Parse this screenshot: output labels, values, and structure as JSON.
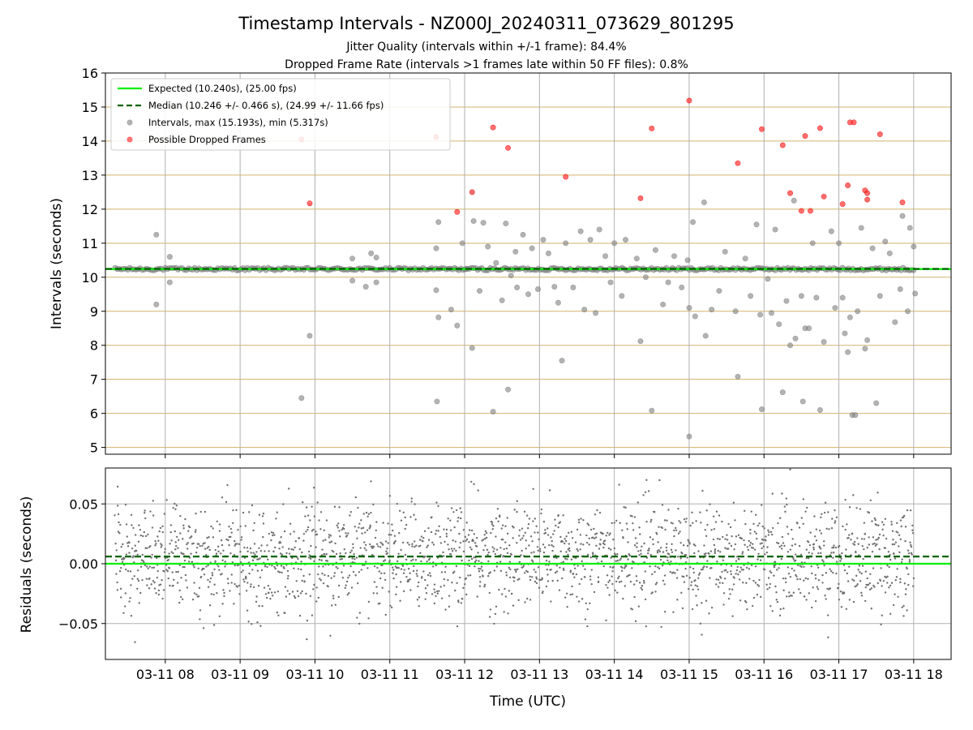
{
  "chart_data": {
    "type": "scatter",
    "title": "Timestamp Intervals - NZ000J_20240311_073629_801295",
    "subtitle_lines": [
      "Jitter Quality (intervals within +/-1 frame): 84.4%",
      "Dropped Frame Rate (intervals >1 frames late within 50 FF files): 0.8%"
    ],
    "xlabel": "Time (UTC)",
    "x_ticks": [
      "03-11 08",
      "03-11 09",
      "03-11 10",
      "03-11 11",
      "03-11 12",
      "03-11 13",
      "03-11 14",
      "03-11 15",
      "03-11 16",
      "03-11 17",
      "03-11 18"
    ],
    "x_range_hours": [
      7.2,
      18.5
    ],
    "panels": {
      "intervals": {
        "ylabel": "Intervals (seconds)",
        "ylim": [
          4.8,
          16
        ],
        "yticks": [
          5,
          6,
          7,
          8,
          9,
          10,
          11,
          12,
          13,
          14,
          15,
          16
        ],
        "horizontal_gridlines": true,
        "horizontal_gridline_color": "#d2b36b",
        "vertical_gridlines": true,
        "expected_value": 10.24,
        "median_value": 10.246,
        "legend": {
          "placement": "top-left",
          "entries": [
            {
              "label": "Expected (10.240s), (25.00 fps)",
              "style": "solid-line",
              "color": "#00ee00"
            },
            {
              "label": "Median (10.246 +/- 0.466 s), (24.99 +/- 11.66 fps)",
              "style": "dashed-line",
              "color": "#006400"
            },
            {
              "label": "Intervals, max (15.193s), min (5.317s)",
              "style": "marker",
              "color": "#808080"
            },
            {
              "label": "Possible Dropped Frames",
              "style": "marker",
              "color": "#ff2020"
            }
          ]
        },
        "outlier_intervals": [
          [
            7.88,
            11.25
          ],
          [
            7.88,
            9.2
          ],
          [
            8.06,
            10.6
          ],
          [
            8.06,
            9.85
          ],
          [
            9.82,
            6.45
          ],
          [
            9.93,
            8.28
          ],
          [
            10.5,
            10.55
          ],
          [
            10.5,
            9.9
          ],
          [
            10.75,
            10.7
          ],
          [
            10.82,
            10.58
          ],
          [
            10.82,
            9.85
          ],
          [
            10.68,
            9.72
          ],
          [
            11.65,
            11.62
          ],
          [
            11.62,
            10.85
          ],
          [
            11.62,
            9.62
          ],
          [
            11.65,
            8.82
          ],
          [
            11.63,
            6.35
          ],
          [
            11.82,
            9.05
          ],
          [
            11.9,
            8.58
          ],
          [
            11.97,
            11.0
          ],
          [
            12.02,
            10.25
          ],
          [
            12.1,
            7.92
          ],
          [
            12.12,
            11.65
          ],
          [
            12.2,
            9.6
          ],
          [
            12.25,
            11.6
          ],
          [
            12.31,
            10.9
          ],
          [
            12.38,
            6.05
          ],
          [
            12.42,
            10.42
          ],
          [
            12.5,
            9.32
          ],
          [
            12.55,
            11.58
          ],
          [
            12.58,
            6.7
          ],
          [
            12.62,
            10.05
          ],
          [
            12.68,
            10.75
          ],
          [
            12.7,
            9.7
          ],
          [
            12.78,
            11.25
          ],
          [
            12.85,
            9.5
          ],
          [
            12.9,
            10.85
          ],
          [
            12.98,
            9.65
          ],
          [
            13.05,
            11.1
          ],
          [
            13.12,
            10.7
          ],
          [
            13.2,
            9.72
          ],
          [
            13.25,
            9.25
          ],
          [
            13.3,
            7.55
          ],
          [
            13.35,
            11.0
          ],
          [
            13.45,
            9.7
          ],
          [
            13.55,
            11.35
          ],
          [
            13.6,
            9.05
          ],
          [
            13.68,
            11.1
          ],
          [
            13.75,
            8.95
          ],
          [
            13.8,
            11.4
          ],
          [
            13.88,
            10.62
          ],
          [
            13.95,
            9.85
          ],
          [
            14.0,
            11.0
          ],
          [
            14.1,
            9.45
          ],
          [
            14.15,
            11.1
          ],
          [
            14.3,
            10.55
          ],
          [
            14.35,
            8.12
          ],
          [
            14.42,
            10.0
          ],
          [
            14.5,
            6.08
          ],
          [
            14.55,
            10.8
          ],
          [
            14.65,
            9.2
          ],
          [
            14.72,
            9.85
          ],
          [
            14.8,
            10.62
          ],
          [
            14.9,
            9.7
          ],
          [
            14.98,
            10.5
          ],
          [
            15.0,
            9.1
          ],
          [
            15.0,
            5.32
          ],
          [
            15.05,
            11.62
          ],
          [
            15.08,
            8.85
          ],
          [
            15.2,
            12.2
          ],
          [
            15.22,
            8.28
          ],
          [
            15.3,
            9.05
          ],
          [
            15.4,
            9.6
          ],
          [
            15.48,
            10.75
          ],
          [
            15.62,
            9.0
          ],
          [
            15.65,
            7.08
          ],
          [
            15.75,
            10.55
          ],
          [
            15.82,
            9.45
          ],
          [
            15.9,
            11.55
          ],
          [
            15.95,
            8.9
          ],
          [
            15.97,
            6.12
          ],
          [
            16.05,
            9.95
          ],
          [
            16.1,
            8.95
          ],
          [
            16.15,
            11.4
          ],
          [
            16.2,
            8.62
          ],
          [
            16.25,
            6.62
          ],
          [
            16.3,
            9.3
          ],
          [
            16.35,
            8.0
          ],
          [
            16.4,
            12.25
          ],
          [
            16.42,
            8.2
          ],
          [
            16.5,
            9.45
          ],
          [
            16.52,
            6.35
          ],
          [
            16.55,
            8.5
          ],
          [
            16.6,
            8.5
          ],
          [
            16.65,
            11.0
          ],
          [
            16.7,
            9.4
          ],
          [
            16.75,
            6.1
          ],
          [
            16.8,
            8.1
          ],
          [
            16.9,
            11.35
          ],
          [
            16.95,
            9.1
          ],
          [
            17.0,
            11.0
          ],
          [
            17.05,
            9.4
          ],
          [
            17.08,
            8.35
          ],
          [
            17.12,
            7.8
          ],
          [
            17.15,
            8.82
          ],
          [
            17.18,
            5.95
          ],
          [
            17.22,
            5.95
          ],
          [
            17.25,
            9.0
          ],
          [
            17.3,
            11.45
          ],
          [
            17.35,
            7.9
          ],
          [
            17.38,
            8.15
          ],
          [
            17.45,
            10.85
          ],
          [
            17.5,
            6.3
          ],
          [
            17.55,
            9.45
          ],
          [
            17.62,
            11.05
          ],
          [
            17.68,
            10.7
          ],
          [
            17.75,
            8.68
          ],
          [
            17.82,
            9.65
          ],
          [
            17.85,
            11.8
          ],
          [
            17.92,
            9.0
          ],
          [
            17.95,
            11.45
          ],
          [
            18.0,
            10.9
          ],
          [
            18.02,
            9.52
          ]
        ],
        "dropped_frames": [
          [
            9.82,
            14.05
          ],
          [
            9.93,
            12.17
          ],
          [
            11.62,
            14.12
          ],
          [
            11.9,
            11.92
          ],
          [
            12.1,
            12.5
          ],
          [
            12.38,
            14.4
          ],
          [
            12.58,
            13.8
          ],
          [
            13.35,
            12.95
          ],
          [
            14.35,
            12.32
          ],
          [
            14.5,
            14.37
          ],
          [
            15.0,
            15.19
          ],
          [
            15.65,
            13.35
          ],
          [
            15.97,
            14.35
          ],
          [
            16.25,
            13.88
          ],
          [
            16.35,
            12.47
          ],
          [
            16.5,
            11.95
          ],
          [
            16.55,
            14.15
          ],
          [
            16.62,
            11.95
          ],
          [
            16.75,
            14.38
          ],
          [
            16.8,
            12.37
          ],
          [
            17.05,
            12.15
          ],
          [
            17.12,
            12.7
          ],
          [
            17.15,
            14.55
          ],
          [
            17.2,
            14.55
          ],
          [
            17.35,
            12.55
          ],
          [
            17.38,
            12.47
          ],
          [
            17.38,
            12.28
          ],
          [
            17.55,
            14.2
          ],
          [
            17.85,
            12.2
          ]
        ]
      },
      "residuals": {
        "ylabel": "Residuals (seconds)",
        "ylim": [
          -0.08,
          0.08
        ],
        "yticks": [
          -0.05,
          0.0,
          0.05
        ],
        "ytick_labels": [
          "−0.05",
          "0.00",
          "0.05"
        ],
        "expected_value": 0.0,
        "median_offset": 0.006,
        "points_count": 2200,
        "noise_sd": 0.022
      }
    },
    "colors": {
      "expected": "#00ee00",
      "median": "#006400",
      "intervals": "#808080",
      "dropped": "#ff2020",
      "grid": "#b0b0b0"
    }
  }
}
